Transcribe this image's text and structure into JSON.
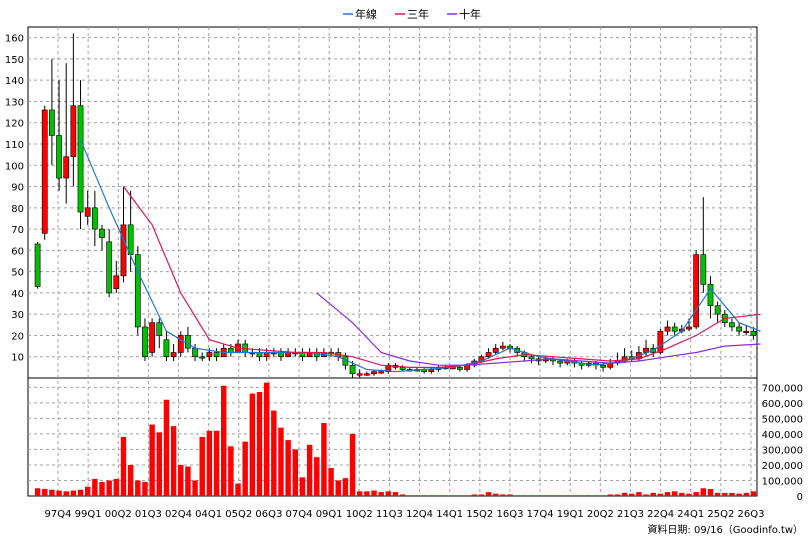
{
  "chart_data": {
    "type": "candlestick+bar",
    "legend": [
      {
        "name": "年線",
        "color": "#1f77d0"
      },
      {
        "name": "三年",
        "color": "#e0145a"
      },
      {
        "name": "十年",
        "color": "#8a2be2"
      }
    ],
    "price_axis": {
      "ylim": [
        0,
        165
      ],
      "ticks": [
        10,
        20,
        30,
        40,
        50,
        60,
        70,
        80,
        90,
        100,
        110,
        120,
        130,
        140,
        150,
        160
      ]
    },
    "volume_axis": {
      "ylim": [
        0,
        760000
      ],
      "ticks": [
        "0",
        "100,000",
        "200,000",
        "300,000",
        "400,000",
        "500,000",
        "600,000",
        "700,000"
      ],
      "tick_values": [
        0,
        100000,
        200000,
        300000,
        400000,
        500000,
        600000,
        700000
      ]
    },
    "x_labels": [
      "97Q4",
      "99Q1",
      "00Q2",
      "01Q3",
      "02Q4",
      "04Q1",
      "05Q2",
      "06Q3",
      "07Q4",
      "09Q1",
      "10Q2",
      "11Q3",
      "12Q4",
      "14Q1",
      "15Q2",
      "16Q3",
      "17Q4",
      "19Q1",
      "20Q2",
      "21Q3",
      "22Q4",
      "24Q1",
      "25Q2",
      "26Q3"
    ],
    "footer": "資料日期: 09/16（Goodinfo.tw）",
    "candles": [
      [
        63,
        43,
        64,
        42
      ],
      [
        68,
        126,
        128,
        65
      ],
      [
        126,
        114,
        150,
        100
      ],
      [
        114,
        94,
        140,
        88
      ],
      [
        94,
        104,
        148,
        82
      ],
      [
        104,
        128,
        162,
        90
      ],
      [
        128,
        78,
        140,
        70
      ],
      [
        76,
        80,
        88,
        72
      ],
      [
        80,
        70,
        88,
        62
      ],
      [
        70,
        66,
        72,
        60
      ],
      [
        64,
        40,
        70,
        38
      ],
      [
        42,
        48,
        55,
        40
      ],
      [
        48,
        72,
        90,
        45
      ],
      [
        72,
        58,
        88,
        50
      ],
      [
        58,
        24,
        62,
        20
      ],
      [
        24,
        10,
        28,
        8
      ],
      [
        12,
        26,
        28,
        10
      ],
      [
        26,
        20,
        28,
        14
      ],
      [
        18,
        10,
        22,
        8
      ],
      [
        10,
        12,
        16,
        8
      ],
      [
        12,
        20,
        22,
        10
      ],
      [
        20,
        14,
        24,
        12
      ],
      [
        14,
        10,
        16,
        8
      ],
      [
        10,
        10,
        12,
        8
      ],
      [
        10,
        12,
        14,
        8
      ],
      [
        12,
        10,
        14,
        8
      ],
      [
        10,
        14,
        16,
        10
      ],
      [
        14,
        12,
        16,
        10
      ],
      [
        12,
        16,
        18,
        12
      ],
      [
        16,
        12,
        18,
        10
      ],
      [
        12,
        12,
        14,
        10
      ],
      [
        12,
        10,
        14,
        8
      ],
      [
        10,
        12,
        14,
        8
      ],
      [
        12,
        12,
        14,
        10
      ],
      [
        12,
        10,
        14,
        8
      ],
      [
        10,
        12,
        14,
        10
      ],
      [
        12,
        12,
        14,
        10
      ],
      [
        12,
        10,
        14,
        8
      ],
      [
        10,
        12,
        14,
        10
      ],
      [
        12,
        10,
        14,
        8
      ],
      [
        10,
        12,
        14,
        10
      ],
      [
        12,
        12,
        14,
        10
      ],
      [
        12,
        10,
        14,
        8
      ],
      [
        10,
        6,
        12,
        4
      ],
      [
        6,
        2,
        8,
        0
      ],
      [
        2,
        2,
        4,
        0
      ],
      [
        2,
        2,
        3,
        1
      ],
      [
        2,
        3,
        4,
        1
      ],
      [
        3,
        3,
        4,
        2
      ],
      [
        3,
        6,
        7,
        2
      ],
      [
        6,
        5,
        7,
        4
      ],
      [
        5,
        4,
        6,
        3
      ],
      [
        4,
        4,
        5,
        3
      ],
      [
        4,
        4,
        5,
        3
      ],
      [
        4,
        3,
        5,
        2
      ],
      [
        3,
        4,
        5,
        2
      ],
      [
        4,
        5,
        6,
        3
      ],
      [
        5,
        5,
        6,
        4
      ],
      [
        5,
        5,
        6,
        4
      ],
      [
        5,
        4,
        6,
        3
      ],
      [
        4,
        6,
        7,
        3
      ],
      [
        6,
        8,
        9,
        5
      ],
      [
        8,
        10,
        11,
        7
      ],
      [
        10,
        12,
        14,
        9
      ],
      [
        12,
        14,
        16,
        11
      ],
      [
        14,
        15,
        17,
        13
      ],
      [
        15,
        14,
        16,
        12
      ],
      [
        14,
        12,
        15,
        10
      ],
      [
        12,
        10,
        13,
        8
      ],
      [
        10,
        9,
        11,
        7
      ],
      [
        9,
        8,
        10,
        6
      ],
      [
        8,
        9,
        10,
        7
      ],
      [
        9,
        8,
        10,
        6
      ],
      [
        8,
        7,
        9,
        5
      ],
      [
        7,
        8,
        9,
        6
      ],
      [
        8,
        7,
        9,
        5
      ],
      [
        7,
        6,
        8,
        4
      ],
      [
        6,
        7,
        8,
        5
      ],
      [
        7,
        6,
        8,
        4
      ],
      [
        6,
        5,
        7,
        3
      ],
      [
        5,
        7,
        9,
        4
      ],
      [
        7,
        8,
        12,
        6
      ],
      [
        8,
        10,
        14,
        7
      ],
      [
        10,
        9,
        13,
        8
      ],
      [
        9,
        12,
        15,
        8
      ],
      [
        12,
        14,
        18,
        10
      ],
      [
        14,
        12,
        16,
        10
      ],
      [
        12,
        22,
        23,
        11
      ],
      [
        22,
        24,
        27,
        20
      ],
      [
        24,
        22,
        26,
        20
      ],
      [
        22,
        23,
        25,
        21
      ],
      [
        23,
        24,
        28,
        22
      ],
      [
        24,
        58,
        60,
        23
      ],
      [
        58,
        44,
        85,
        40
      ],
      [
        44,
        34,
        48,
        28
      ],
      [
        34,
        30,
        36,
        26
      ],
      [
        30,
        26,
        32,
        24
      ],
      [
        26,
        24,
        28,
        22
      ],
      [
        24,
        22,
        26,
        20
      ],
      [
        22,
        22,
        25,
        20
      ],
      [
        22,
        20,
        24,
        18
      ]
    ],
    "year_line": [
      [
        6,
        112
      ],
      [
        10,
        80
      ],
      [
        14,
        50
      ],
      [
        18,
        22
      ],
      [
        22,
        14
      ],
      [
        26,
        12
      ],
      [
        30,
        12
      ],
      [
        34,
        12
      ],
      [
        38,
        12
      ],
      [
        42,
        10
      ],
      [
        46,
        4
      ],
      [
        50,
        3
      ],
      [
        54,
        4
      ],
      [
        58,
        5
      ],
      [
        62,
        8
      ],
      [
        66,
        14
      ],
      [
        70,
        10
      ],
      [
        74,
        8
      ],
      [
        78,
        6
      ],
      [
        82,
        8
      ],
      [
        86,
        13
      ],
      [
        90,
        22
      ],
      [
        94,
        42
      ],
      [
        98,
        26
      ],
      [
        101,
        22
      ]
    ],
    "three_year_line": [
      [
        12,
        90
      ],
      [
        16,
        72
      ],
      [
        20,
        40
      ],
      [
        24,
        18
      ],
      [
        28,
        14
      ],
      [
        32,
        13
      ],
      [
        36,
        12
      ],
      [
        40,
        12
      ],
      [
        44,
        10
      ],
      [
        48,
        6
      ],
      [
        52,
        5
      ],
      [
        56,
        5
      ],
      [
        60,
        6
      ],
      [
        64,
        9
      ],
      [
        68,
        11
      ],
      [
        72,
        10
      ],
      [
        76,
        9
      ],
      [
        80,
        8
      ],
      [
        84,
        9
      ],
      [
        88,
        14
      ],
      [
        92,
        20
      ],
      [
        96,
        28
      ],
      [
        101,
        30
      ]
    ],
    "ten_year_line": [
      [
        39,
        40
      ],
      [
        44,
        26
      ],
      [
        48,
        12
      ],
      [
        52,
        8
      ],
      [
        56,
        6
      ],
      [
        60,
        6
      ],
      [
        64,
        7
      ],
      [
        68,
        8
      ],
      [
        72,
        9
      ],
      [
        76,
        8
      ],
      [
        80,
        7
      ],
      [
        84,
        8
      ],
      [
        88,
        10
      ],
      [
        92,
        12
      ],
      [
        96,
        15
      ],
      [
        101,
        16
      ]
    ],
    "volumes": [
      50000,
      45000,
      40000,
      35000,
      30000,
      35000,
      40000,
      60000,
      110000,
      90000,
      100000,
      110000,
      380000,
      200000,
      100000,
      90000,
      460000,
      410000,
      620000,
      450000,
      200000,
      190000,
      100000,
      380000,
      420000,
      420000,
      710000,
      320000,
      80000,
      350000,
      660000,
      670000,
      730000,
      550000,
      440000,
      360000,
      300000,
      120000,
      330000,
      250000,
      470000,
      180000,
      100000,
      115000,
      400000,
      30000,
      30000,
      35000,
      25000,
      30000,
      25000,
      10000,
      5000,
      5000,
      5000,
      5000,
      5000,
      5000,
      5000,
      5000,
      5000,
      10000,
      10000,
      25000,
      15000,
      10000,
      10000,
      5000,
      5000,
      5000,
      5000,
      5000,
      5000,
      5000,
      5000,
      5000,
      5000,
      5000,
      5000,
      5000,
      10000,
      10000,
      20000,
      15000,
      25000,
      10000,
      20000,
      15000,
      25000,
      30000,
      20000,
      15000,
      25000,
      50000,
      45000,
      20000,
      20000,
      20000,
      15000,
      20000,
      30000
    ]
  }
}
